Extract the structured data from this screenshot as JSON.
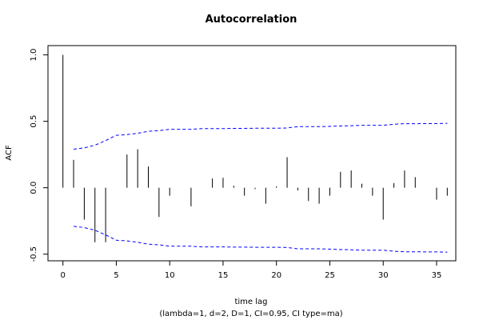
{
  "chart_data": {
    "type": "bar",
    "title": "Autocorrelation",
    "xlabel": "time lag",
    "subtitle": "(lambda=1, d=2, D=1, CI=0.95, CI type=ma)",
    "ylabel": "ACF",
    "xlim": [
      -1.4,
      36.8
    ],
    "ylim": [
      -0.55,
      1.07
    ],
    "x_ticks": [
      0,
      5,
      10,
      15,
      20,
      25,
      30,
      35
    ],
    "x_tick_labels": [
      "0",
      "5",
      "10",
      "15",
      "20",
      "25",
      "30",
      "35"
    ],
    "y_ticks": [
      -0.5,
      0.0,
      0.5,
      1.0
    ],
    "y_tick_labels": [
      "-0.5",
      "0.0",
      "0.5",
      "1.0"
    ],
    "grid": false,
    "acf": {
      "lags": [
        0,
        1,
        2,
        3,
        4,
        5,
        6,
        7,
        8,
        9,
        10,
        11,
        12,
        13,
        14,
        15,
        16,
        17,
        18,
        19,
        20,
        21,
        22,
        23,
        24,
        25,
        26,
        27,
        28,
        29,
        30,
        31,
        32,
        33,
        34,
        35,
        36
      ],
      "values": [
        1.0,
        0.21,
        -0.24,
        -0.41,
        -0.41,
        0.0,
        0.25,
        0.29,
        0.16,
        -0.22,
        -0.06,
        0.0,
        -0.14,
        0.0,
        0.07,
        0.075,
        0.015,
        -0.06,
        -0.01,
        -0.12,
        0.01,
        0.23,
        -0.02,
        -0.1,
        -0.12,
        -0.06,
        0.12,
        0.13,
        0.03,
        -0.06,
        -0.24,
        0.035,
        0.13,
        0.08,
        0.0,
        -0.09,
        -0.06
      ]
    },
    "confidence_bounds": {
      "lags": [
        1,
        2,
        3,
        4,
        5,
        6,
        7,
        8,
        9,
        10,
        11,
        12,
        13,
        14,
        15,
        16,
        17,
        18,
        19,
        20,
        21,
        22,
        23,
        24,
        25,
        26,
        27,
        28,
        29,
        30,
        31,
        32,
        33,
        34,
        35,
        36
      ],
      "upper": [
        0.29,
        0.3,
        0.32,
        0.355,
        0.395,
        0.4,
        0.41,
        0.425,
        0.43,
        0.44,
        0.44,
        0.44,
        0.445,
        0.445,
        0.445,
        0.447,
        0.447,
        0.448,
        0.448,
        0.448,
        0.45,
        0.46,
        0.46,
        0.46,
        0.462,
        0.465,
        0.467,
        0.47,
        0.47,
        0.47,
        0.478,
        0.482,
        0.482,
        0.483,
        0.483,
        0.485
      ],
      "color": "#0000ff"
    },
    "bar_color": "#000000"
  }
}
